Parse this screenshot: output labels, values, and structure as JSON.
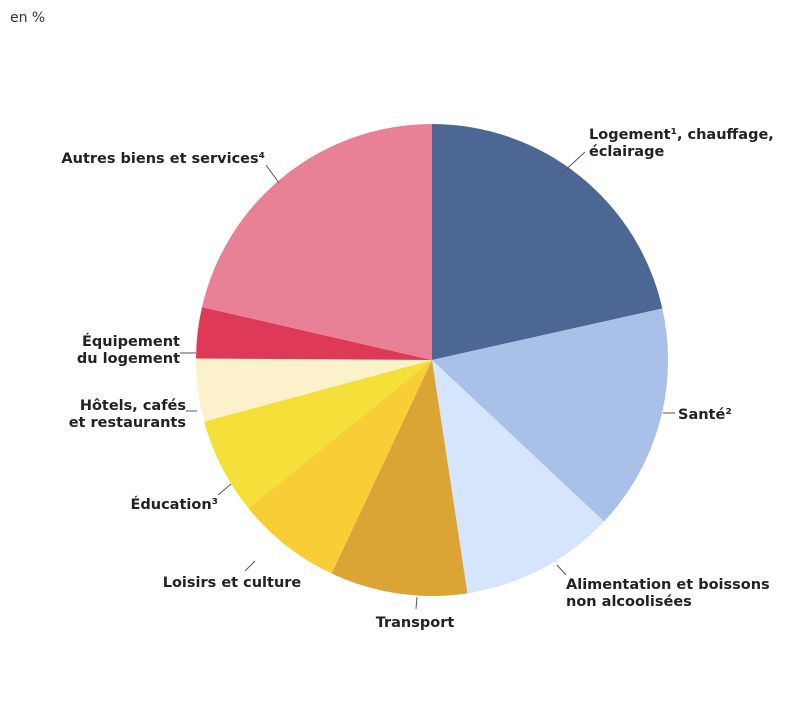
{
  "unit_label": "en %",
  "chart_data": {
    "type": "pie",
    "start_angle_deg": 0,
    "direction": "clockwise",
    "slices": [
      {
        "label": [
          "Logement¹, chauffage,",
          "éclairage"
        ],
        "value": 21.5,
        "color": "#4c6794"
      },
      {
        "label": [
          "Santé²"
        ],
        "value": 15.5,
        "color": "#a9c0e8"
      },
      {
        "label": [
          "Alimentation et boissons",
          "non alcoolisées"
        ],
        "value": 10.6,
        "color": "#d5e5fb"
      },
      {
        "label": [
          "Transport"
        ],
        "value": 9.4,
        "color": "#dba535"
      },
      {
        "label": [
          "Loisirs et culture"
        ],
        "value": 7.2,
        "color": "#f7ce36"
      },
      {
        "label": [
          "Éducation³"
        ],
        "value": 6.6,
        "color": "#f4e038"
      },
      {
        "label": [
          "Hôtels, cafés",
          "et restaurants"
        ],
        "value": 4.3,
        "color": "#fbf1ca"
      },
      {
        "label": [
          "Équipement",
          "du logement"
        ],
        "value": 3.5,
        "color": "#de3a57"
      },
      {
        "label": [
          "Autres biens et services⁴"
        ],
        "value": 21.4,
        "color": "#e88096"
      }
    ]
  }
}
